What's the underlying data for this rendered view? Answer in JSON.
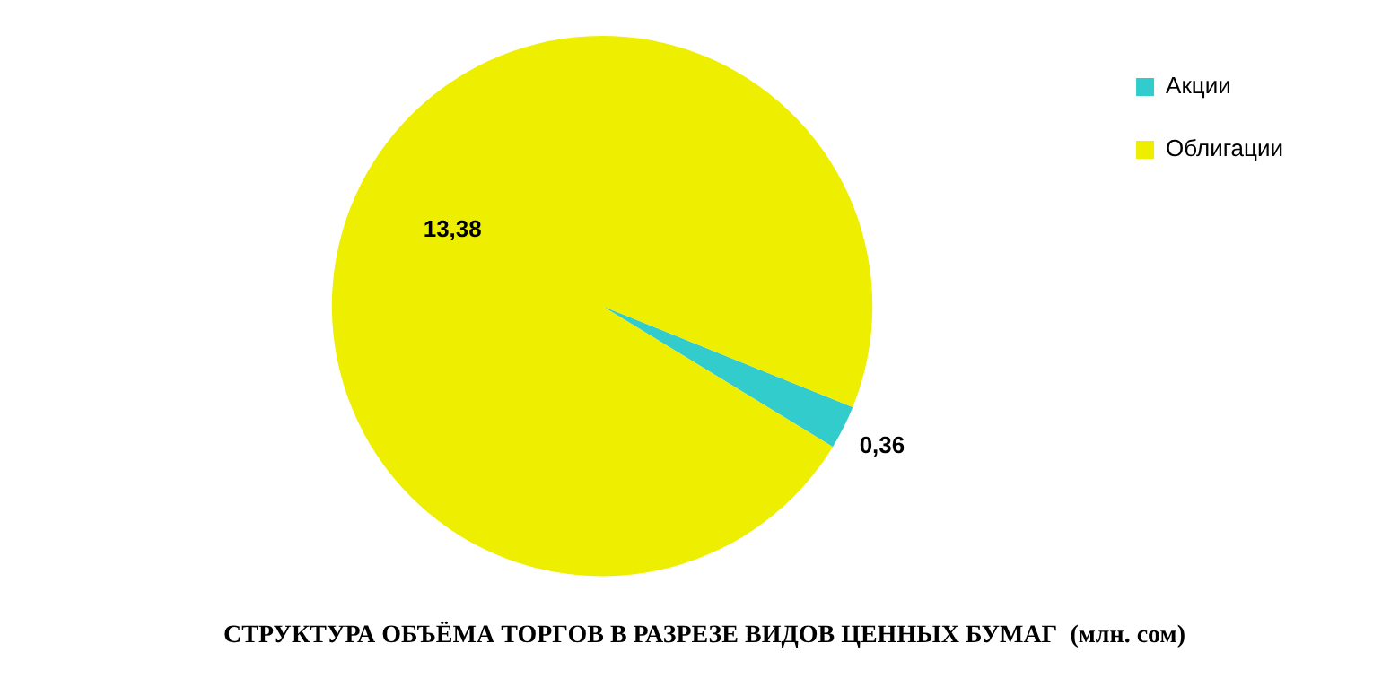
{
  "chart_data": {
    "type": "pie",
    "title": "СТРУКТУРА ОБЪЁМА ТОРГОВ В РАЗРЕЗЕ ВИДОВ ЦЕННЫХ БУМАГ  (млн. сом)",
    "categories": [
      "Акции",
      "Облигации"
    ],
    "values": [
      0.36,
      13.38
    ],
    "value_labels": [
      "0,36",
      "13,38"
    ],
    "colors": [
      "#33cccc",
      "#eeee00"
    ],
    "legend": "right"
  }
}
